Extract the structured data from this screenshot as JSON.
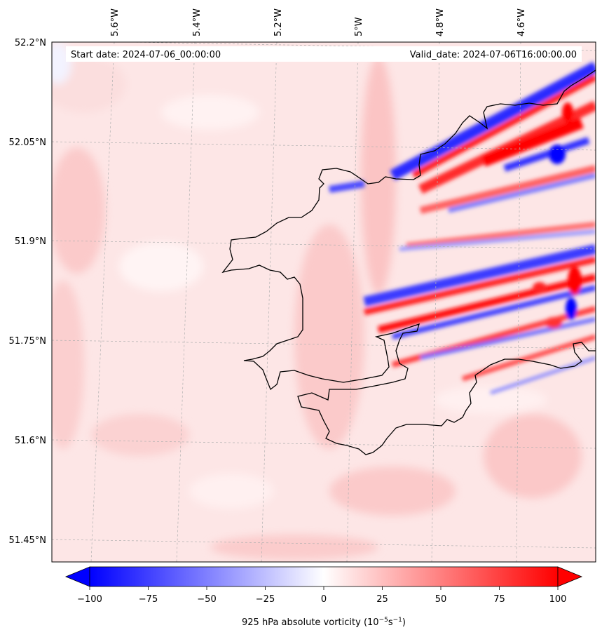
{
  "map": {
    "start_date": "Start date: 2024-07-06_00:00:00",
    "valid_date": "Valid_date: 2024-07-06T16:00:00.00",
    "lon_labels": [
      "5.6°W",
      "5.4°W",
      "5.2°W",
      "5°W",
      "4.8°W",
      "4.6°W"
    ],
    "lat_labels": [
      "52.2°N",
      "52.05°N",
      "51.9°N",
      "51.75°N",
      "51.6°N",
      "51.45°N"
    ],
    "field": "925 hPa absolute vorticity",
    "gridlines": true
  },
  "colorbar": {
    "label_prefix": "925 hPa absolute vorticity (10",
    "label_exp1": "−5",
    "label_mid": "s",
    "label_exp2": "−1",
    "label_suffix": ")",
    "min": -100,
    "max": 100,
    "ticks": [
      "−100",
      "−75",
      "−50",
      "−25",
      "0",
      "25",
      "50",
      "75",
      "100"
    ],
    "extend": "both",
    "colors": {
      "negative": "#0000ff",
      "neutral": "#ffffff",
      "positive": "#ff0000"
    }
  },
  "colors": {
    "background": "#fde8e8",
    "coastline": "#000000",
    "gridline": "#b0b0b0"
  }
}
